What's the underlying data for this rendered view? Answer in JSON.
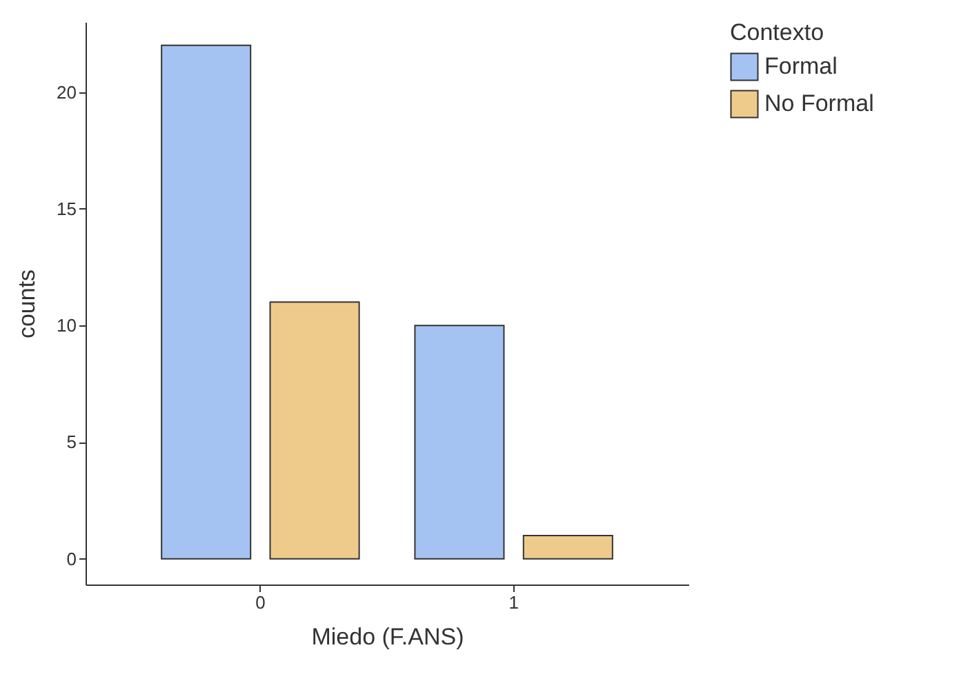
{
  "chart_data": {
    "type": "bar",
    "categories": [
      "0",
      "1"
    ],
    "series": [
      {
        "name": "Formal",
        "color": "#a4c3f2",
        "values": [
          22,
          10
        ]
      },
      {
        "name": "No Formal",
        "color": "#efcb8b",
        "values": [
          11,
          1
        ]
      }
    ],
    "xlabel": "Miedo (F.ANS)",
    "ylabel": "counts",
    "legend_title": "Contexto",
    "ylim": [
      -1.1,
      23
    ],
    "yticks": [
      0,
      5,
      10,
      15,
      20
    ],
    "grid": false,
    "legend": "right"
  }
}
